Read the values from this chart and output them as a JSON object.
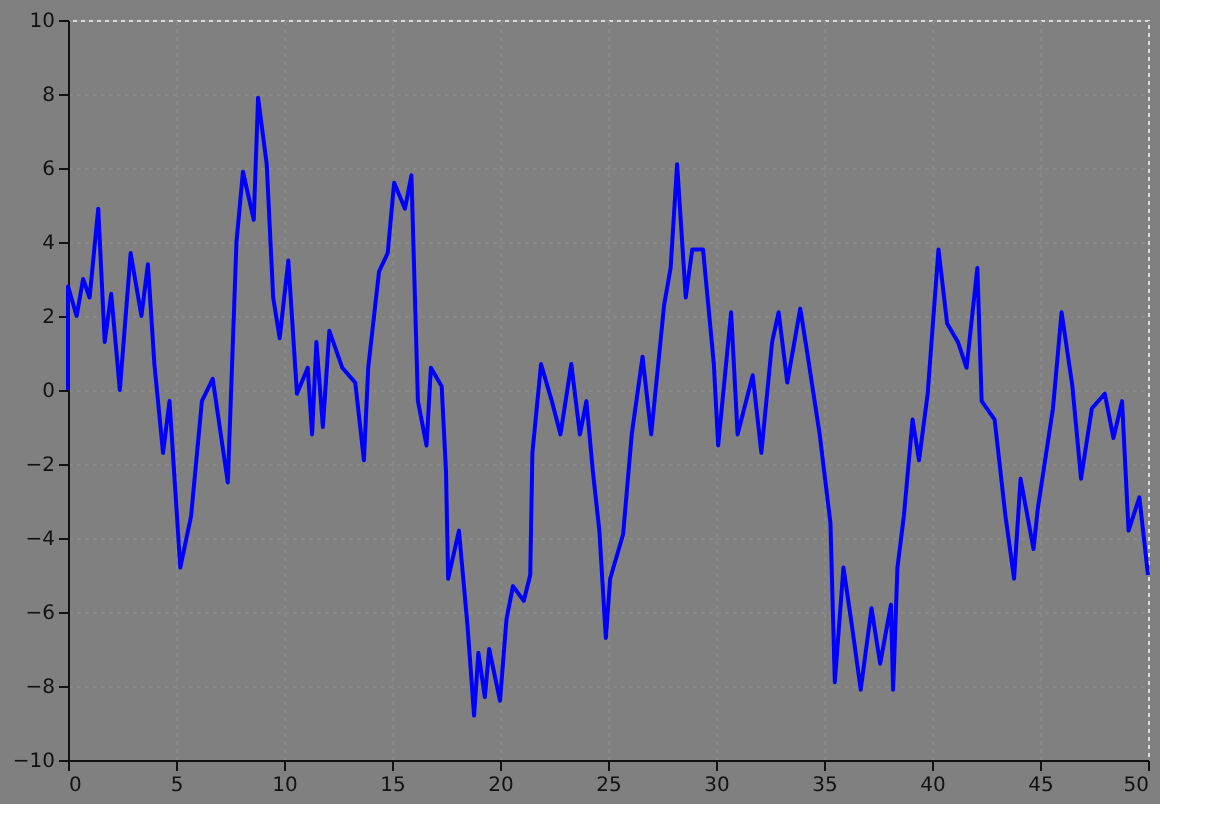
{
  "chart_data": {
    "type": "line",
    "xlim": [
      0,
      50
    ],
    "ylim": [
      -10,
      10
    ],
    "xticks": [
      0,
      5,
      10,
      15,
      20,
      25,
      30,
      35,
      40,
      45,
      50
    ],
    "yticks": [
      -10,
      -8,
      -6,
      -4,
      -2,
      0,
      2,
      4,
      6,
      8,
      10
    ],
    "grid": true,
    "legend": false,
    "marker": "none",
    "line_style": "solid",
    "x": [
      0,
      0,
      0.4,
      0.7,
      1.0,
      1.4,
      1.7,
      2.0,
      2.4,
      2.9,
      3.4,
      3.7,
      4.0,
      4.4,
      4.7,
      5.2,
      5.7,
      6.2,
      6.7,
      7.4,
      7.8,
      8.1,
      8.6,
      8.8,
      9.2,
      9.5,
      9.8,
      10.2,
      10.6,
      11.1,
      11.3,
      11.5,
      11.8,
      12.1,
      12.7,
      13.3,
      13.7,
      13.9,
      14.4,
      14.8,
      15.1,
      15.6,
      15.9,
      16.2,
      16.6,
      16.8,
      17.3,
      17.5,
      17.6,
      18.1,
      18.5,
      18.8,
      19.0,
      19.3,
      19.5,
      20.0,
      20.3,
      20.6,
      21.1,
      21.4,
      21.5,
      21.9,
      22.4,
      22.8,
      23.3,
      23.7,
      24.0,
      24.3,
      24.6,
      24.9,
      25.1,
      25.7,
      26.1,
      26.6,
      27.0,
      27.6,
      27.9,
      28.2,
      28.6,
      28.9,
      29.4,
      29.9,
      30.1,
      30.7,
      31.0,
      31.7,
      32.1,
      32.6,
      32.9,
      33.3,
      33.9,
      34.2,
      34.8,
      35.3,
      35.5,
      35.9,
      36.3,
      36.7,
      37.2,
      37.6,
      38.1,
      38.2,
      38.4,
      38.7,
      39.1,
      39.4,
      39.8,
      40.3,
      40.7,
      41.2,
      41.6,
      42.1,
      42.3,
      42.9,
      43.4,
      43.8,
      44.1,
      44.7,
      44.9,
      45.6,
      46.0,
      46.5,
      46.9,
      47.4,
      48.0,
      48.4,
      48.8,
      49.1,
      49.6,
      50
    ],
    "series": [
      {
        "color": "#0000ff",
        "values": [
          0,
          2.8,
          2.0,
          3.0,
          2.5,
          4.9,
          1.3,
          2.6,
          0,
          3.7,
          2.0,
          3.4,
          0.7,
          -1.7,
          -0.3,
          -4.8,
          -3.4,
          -0.3,
          0.3,
          -2.5,
          4.0,
          5.9,
          4.6,
          7.9,
          6.1,
          2.5,
          1.4,
          3.5,
          -0.1,
          0.6,
          -1.2,
          1.3,
          -1.0,
          1.6,
          0.6,
          0.2,
          -1.9,
          0.6,
          3.2,
          3.7,
          5.6,
          4.9,
          5.8,
          -0.3,
          -1.5,
          0.6,
          0.1,
          -2.2,
          -5.1,
          -3.8,
          -6.4,
          -8.8,
          -7.1,
          -8.3,
          -7.0,
          -8.4,
          -6.2,
          -5.3,
          -5.7,
          -5.0,
          -1.7,
          0.7,
          -0.3,
          -1.2,
          0.7,
          -1.2,
          -0.3,
          -2.2,
          -3.8,
          -6.7,
          -5.1,
          -3.9,
          -1.2,
          0.9,
          -1.2,
          2.3,
          3.3,
          6.1,
          2.5,
          3.8,
          3.8,
          0.7,
          -1.5,
          2.1,
          -1.2,
          0.4,
          -1.7,
          1.3,
          2.1,
          0.2,
          2.2,
          1.1,
          -1.2,
          -3.6,
          -7.9,
          -4.8,
          -6.4,
          -8.1,
          -5.9,
          -7.4,
          -5.8,
          -8.1,
          -4.8,
          -3.4,
          -0.8,
          -1.9,
          -0.1,
          3.8,
          1.8,
          1.3,
          0.6,
          3.3,
          -0.3,
          -0.8,
          -3.4,
          -5.1,
          -2.4,
          -4.3,
          -3.2,
          -0.5,
          2.1,
          0.1,
          -2.4,
          -0.5,
          -0.1,
          -1.3,
          -0.3,
          -3.8,
          -2.9,
          -5.0
        ]
      }
    ]
  }
}
